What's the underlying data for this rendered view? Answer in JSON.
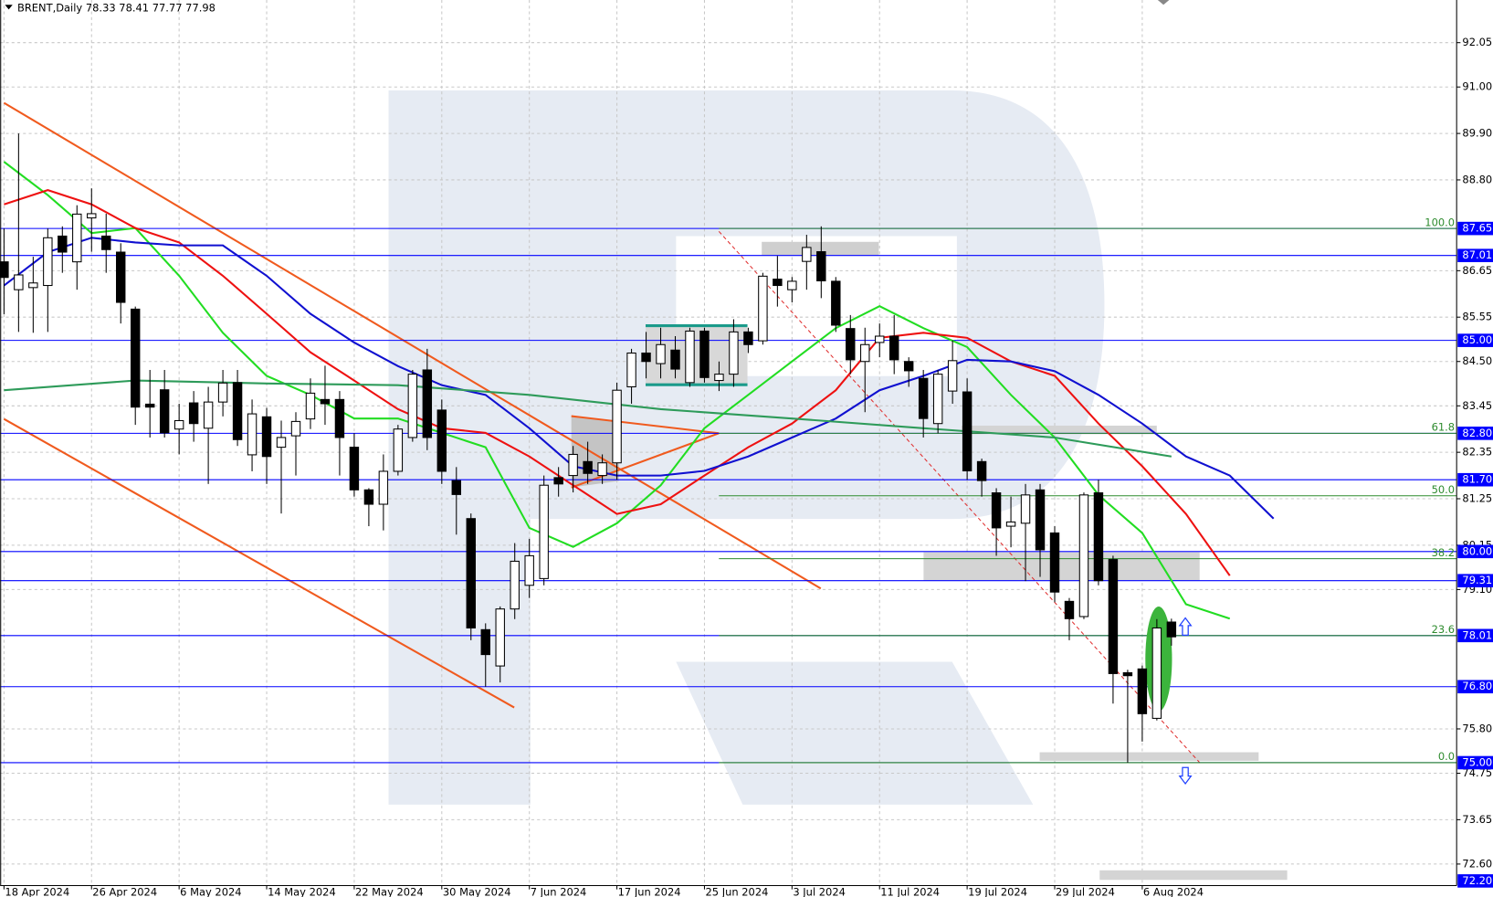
{
  "header": {
    "symbol": "BRENT,Daily",
    "ohlc": [
      78.33,
      78.41,
      77.77,
      77.98
    ]
  },
  "chart_data": {
    "type": "candlestick",
    "categories": [
      "18 Apr 2024",
      null,
      null,
      null,
      null,
      null,
      "26 Apr 2024",
      null,
      null,
      null,
      null,
      null,
      "6 May 2024",
      null,
      null,
      null,
      null,
      null,
      "14 May 2024",
      null,
      null,
      null,
      null,
      null,
      "22 May 2024",
      null,
      null,
      null,
      null,
      null,
      "30 May 2024",
      null,
      null,
      null,
      null,
      null,
      "7 Jun 2024",
      null,
      null,
      null,
      null,
      null,
      "17 Jun 2024",
      null,
      null,
      null,
      null,
      null,
      "25 Jun 2024",
      null,
      null,
      null,
      null,
      null,
      "3 Jul 2024",
      null,
      null,
      null,
      null,
      null,
      "11 Jul 2024",
      null,
      null,
      null,
      null,
      null,
      "19 Jul 2024",
      null,
      null,
      null,
      null,
      null,
      "29 Jul 2024",
      null,
      null,
      null,
      null,
      null,
      "6 Aug 2024",
      null,
      null
    ],
    "open": [
      86.86,
      86.2,
      86.25,
      86.3,
      87.47,
      86.86,
      87.9,
      87.47,
      87.09,
      85.74,
      83.49,
      83.83,
      82.9,
      83.52,
      82.92,
      83.54,
      84.0,
      82.29,
      83.19,
      82.47,
      82.74,
      83.14,
      83.6,
      83.6,
      82.47,
      81.46,
      81.12,
      81.9,
      82.7,
      84.3,
      83.35,
      81.68,
      80.78,
      78.15,
      77.29,
      78.64,
      79.2,
      79.36,
      81.75,
      81.8,
      82.13,
      81.8,
      82.1,
      83.9,
      84.7,
      84.45,
      84.77,
      84.0,
      85.22,
      84.05,
      84.2,
      85.2,
      84.99,
      86.45,
      86.2,
      86.87,
      87.1,
      86.4,
      85.28,
      84.5,
      84.95,
      85.1,
      84.5,
      84.1,
      83.03,
      83.8,
      83.78,
      82.13,
      81.39,
      80.6,
      80.67,
      81.46,
      80.44,
      78.82,
      78.46,
      81.39,
      79.81,
      77.13,
      77.22,
      76.05,
      78.33
    ],
    "high": [
      87.65,
      89.9,
      86.98,
      87.65,
      87.7,
      88.2,
      88.6,
      88.0,
      87.3,
      85.8,
      84.3,
      84.3,
      83.5,
      83.8,
      83.9,
      84.3,
      84.3,
      83.6,
      83.4,
      83.1,
      83.3,
      84.1,
      84.4,
      83.8,
      82.8,
      81.5,
      82.3,
      83.0,
      84.3,
      84.8,
      83.6,
      82.0,
      80.9,
      78.3,
      78.7,
      80.2,
      80.3,
      81.8,
      82.0,
      82.5,
      82.6,
      82.3,
      84.0,
      84.8,
      85.2,
      85.3,
      85.1,
      85.3,
      85.3,
      84.5,
      85.5,
      85.3,
      86.6,
      87.0,
      86.5,
      87.5,
      87.7,
      86.5,
      85.6,
      85.3,
      85.4,
      85.6,
      84.6,
      84.3,
      84.3,
      85.0,
      84.1,
      82.2,
      81.5,
      81.3,
      81.6,
      81.6,
      80.6,
      78.9,
      81.4,
      81.7,
      79.9,
      77.2,
      77.3,
      78.4,
      78.41
    ],
    "low": [
      85.62,
      85.2,
      85.18,
      85.2,
      86.6,
      86.2,
      87.1,
      86.6,
      85.4,
      83.0,
      82.7,
      82.7,
      82.3,
      82.6,
      81.6,
      83.2,
      82.5,
      81.9,
      81.6,
      80.9,
      81.8,
      82.9,
      83.0,
      81.8,
      81.3,
      80.6,
      80.5,
      81.8,
      82.6,
      82.4,
      81.6,
      80.4,
      77.9,
      76.8,
      76.9,
      78.4,
      78.9,
      79.2,
      81.3,
      81.4,
      81.6,
      81.6,
      81.7,
      83.5,
      84.1,
      84.1,
      84.1,
      83.9,
      84.0,
      83.8,
      83.9,
      84.7,
      84.9,
      85.8,
      85.9,
      86.2,
      86.0,
      85.2,
      84.2,
      83.3,
      84.6,
      84.2,
      83.9,
      82.7,
      82.8,
      83.5,
      81.7,
      81.3,
      79.9,
      80.1,
      79.3,
      79.4,
      78.8,
      77.9,
      78.4,
      79.2,
      76.4,
      75.0,
      75.5,
      76.0,
      77.77
    ],
    "close": [
      86.49,
      86.55,
      86.36,
      87.43,
      87.09,
      87.99,
      88.0,
      87.15,
      85.9,
      83.42,
      83.42,
      82.81,
      83.1,
      83.03,
      83.54,
      83.99,
      82.65,
      83.26,
      82.25,
      82.7,
      83.08,
      83.75,
      83.5,
      82.7,
      81.46,
      81.12,
      81.9,
      82.9,
      84.2,
      82.7,
      81.9,
      81.35,
      78.19,
      77.56,
      78.64,
      79.77,
      79.9,
      81.57,
      81.6,
      82.3,
      81.85,
      82.1,
      83.82,
      84.7,
      84.5,
      84.9,
      84.32,
      85.22,
      84.12,
      84.2,
      85.2,
      84.9,
      86.52,
      86.3,
      86.4,
      87.2,
      86.41,
      85.36,
      84.54,
      84.9,
      85.1,
      84.54,
      84.28,
      83.15,
      84.2,
      84.52,
      81.91,
      81.68,
      80.56,
      80.7,
      81.34,
      80.04,
      79.04,
      78.41,
      81.34,
      79.31,
      77.11,
      77.06,
      76.16,
      78.19,
      77.98
    ],
    "colors": {
      "up": "#ffffff",
      "down": "#000000"
    },
    "ylim": [
      72.09,
      93.06
    ],
    "yticks": [
      92.05,
      {
        "value": 91,
        "label": "91.00"
      },
      {
        "value": 89.9,
        "label": "89.90"
      },
      {
        "value": 88.8,
        "label": "88.80"
      },
      86.65,
      85.55,
      {
        "value": 84.5,
        "label": "84.50"
      },
      83.45,
      82.35,
      81.25,
      80.15,
      {
        "value": 79.1,
        "label": "79.10"
      },
      {
        "value": 75.8,
        "label": "75.80"
      },
      74.75,
      73.65,
      {
        "value": 72.6,
        "label": "72.60"
      }
    ],
    "grid": true,
    "levels": {
      "color": "#0000ff",
      "values": [
        87.65,
        87.01,
        {
          "value": 85,
          "label": "85.00"
        },
        {
          "value": 82.8,
          "label": "82.80"
        },
        {
          "value": 81.7,
          "label": "81.70"
        },
        {
          "value": 80,
          "label": "80.00"
        },
        79.31,
        78.01,
        {
          "value": 76.8,
          "label": "76.80"
        },
        {
          "value": 75,
          "label": "75.00"
        }
      ]
    },
    "price_marker": {
      "value": 72.2,
      "label": "72.20"
    },
    "fibonacci": {
      "color": "#2e8b2e",
      "levels": [
        {
          "label": "100.0",
          "value": 87.65
        },
        {
          "label": "61.8",
          "value": 82.8
        },
        {
          "label": "50.0",
          "value": 81.32
        },
        {
          "label": "38.2",
          "value": 79.83
        },
        {
          "label": "23.6",
          "value": 78.01
        },
        {
          "label": "0.0",
          "value": 75.0
        }
      ]
    },
    "moving_averages": [
      {
        "color": "#22dd22",
        "x": [
          0,
          3,
          6,
          9,
          12,
          15,
          18,
          21,
          24,
          27,
          30,
          33,
          36,
          39,
          42,
          45,
          48,
          51,
          54,
          57,
          60,
          63,
          66,
          69,
          72,
          75,
          78,
          81,
          84
        ],
        "values": [
          89.23,
          88.44,
          87.54,
          87.66,
          86.53,
          85.18,
          84.16,
          83.71,
          83.15,
          83.15,
          82.81,
          82.47,
          80.56,
          80.11,
          80.67,
          81.57,
          82.92,
          83.71,
          84.5,
          85.29,
          85.81,
          85.29,
          84.84,
          83.71,
          82.7,
          81.34,
          80.44,
          78.75,
          78.41
        ]
      },
      {
        "color": "#ee1111",
        "x": [
          0,
          3,
          6,
          9,
          12,
          15,
          18,
          21,
          24,
          27,
          30,
          33,
          36,
          39,
          42,
          45,
          48,
          51,
          54,
          57,
          60,
          63,
          66,
          69,
          72,
          75,
          78,
          81,
          84
        ],
        "values": [
          88.22,
          88.56,
          88.22,
          87.66,
          87.32,
          86.53,
          85.63,
          84.72,
          84.05,
          83.37,
          82.92,
          82.81,
          82.25,
          81.57,
          80.89,
          81.12,
          81.8,
          82.47,
          83.03,
          83.82,
          85.06,
          85.18,
          85.06,
          84.5,
          84.16,
          83.03,
          82.02,
          80.89,
          79.43
        ]
      },
      {
        "color": "#1010d0",
        "x": [
          0,
          3,
          6,
          9,
          12,
          15,
          18,
          21,
          24,
          27,
          30,
          33,
          36,
          39,
          42,
          45,
          48,
          51,
          54,
          57,
          60,
          63,
          66,
          69,
          72,
          75,
          78,
          81,
          84,
          87
        ],
        "values": [
          86.3,
          87.09,
          87.43,
          87.32,
          87.25,
          87.25,
          86.53,
          85.63,
          84.95,
          84.39,
          83.94,
          83.71,
          82.92,
          82.02,
          81.8,
          81.8,
          81.91,
          82.25,
          82.7,
          83.15,
          83.82,
          84.16,
          84.54,
          84.5,
          84.27,
          83.71,
          83.03,
          82.25,
          81.8,
          80.78
        ]
      },
      {
        "color": "#2e9b5a",
        "x": [
          0,
          9,
          18,
          27,
          36,
          45,
          54,
          63,
          72,
          80
        ],
        "values": [
          83.82,
          84.05,
          83.98,
          83.94,
          83.71,
          83.37,
          83.15,
          82.92,
          82.7,
          82.25
        ]
      }
    ]
  }
}
